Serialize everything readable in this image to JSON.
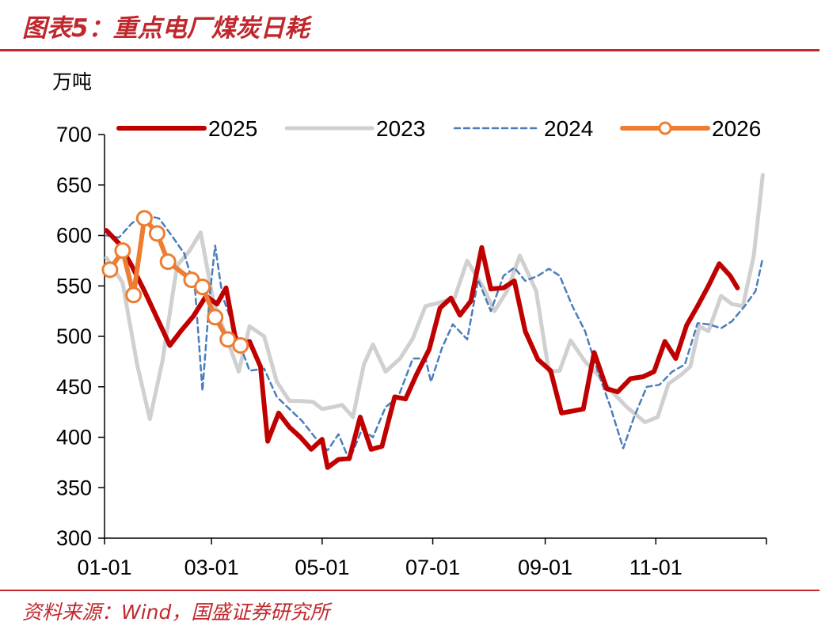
{
  "header": {
    "title": "图表5：重点电厂煤炭日耗"
  },
  "footer": {
    "source": "资料来源：Wind，国盛证券研究所"
  },
  "colors": {
    "accent": "#c0282d",
    "s2025": "#c00000",
    "s2023": "#d0d0d0",
    "s2024": "#4a7ebb",
    "s2026": "#ed7d31"
  },
  "chart_data": {
    "type": "line",
    "ylabel": "万吨",
    "ylim": [
      300,
      700
    ],
    "yticks": [
      300,
      350,
      400,
      450,
      500,
      550,
      600,
      650,
      700
    ],
    "xlim": [
      0,
      365
    ],
    "xticks": [
      {
        "day": 0,
        "label": "01-01"
      },
      {
        "day": 59,
        "label": "03-01"
      },
      {
        "day": 120,
        "label": "05-01"
      },
      {
        "day": 181,
        "label": "07-01"
      },
      {
        "day": 243,
        "label": "09-01"
      },
      {
        "day": 304,
        "label": "11-01"
      }
    ],
    "series": [
      {
        "name": "2023",
        "key": "s2023",
        "style": "gray",
        "points": [
          [
            1,
            578
          ],
          [
            10,
            553
          ],
          [
            18,
            472
          ],
          [
            25,
            418
          ],
          [
            32,
            476
          ],
          [
            40,
            570
          ],
          [
            47,
            585
          ],
          [
            53,
            603
          ],
          [
            60,
            535
          ],
          [
            67,
            500
          ],
          [
            74,
            465
          ],
          [
            80,
            510
          ],
          [
            88,
            500
          ],
          [
            95,
            455
          ],
          [
            102,
            436
          ],
          [
            108,
            436
          ],
          [
            115,
            435
          ],
          [
            120,
            428
          ],
          [
            126,
            430
          ],
          [
            131,
            432
          ],
          [
            137,
            420
          ],
          [
            143,
            472
          ],
          [
            148,
            492
          ],
          [
            155,
            465
          ],
          [
            163,
            478
          ],
          [
            170,
            498
          ],
          [
            177,
            530
          ],
          [
            184,
            533
          ],
          [
            193,
            538
          ],
          [
            200,
            575
          ],
          [
            209,
            548
          ],
          [
            215,
            525
          ],
          [
            222,
            545
          ],
          [
            229,
            580
          ],
          [
            238,
            545
          ],
          [
            245,
            465
          ],
          [
            251,
            466
          ],
          [
            257,
            496
          ],
          [
            265,
            475
          ],
          [
            273,
            460
          ],
          [
            281,
            443
          ],
          [
            288,
            430
          ],
          [
            298,
            415
          ],
          [
            305,
            420
          ],
          [
            311,
            453
          ],
          [
            318,
            462
          ],
          [
            323,
            470
          ],
          [
            328,
            510
          ],
          [
            333,
            505
          ],
          [
            340,
            540
          ],
          [
            346,
            532
          ],
          [
            352,
            530
          ],
          [
            358,
            580
          ],
          [
            363,
            660
          ]
        ]
      },
      {
        "name": "2024",
        "key": "s2024",
        "style": "dashed",
        "points": [
          [
            1,
            600
          ],
          [
            8,
            598
          ],
          [
            15,
            612
          ],
          [
            22,
            620
          ],
          [
            30,
            617
          ],
          [
            37,
            600
          ],
          [
            44,
            582
          ],
          [
            50,
            545
          ],
          [
            54,
            446
          ],
          [
            58,
            540
          ],
          [
            61,
            590
          ],
          [
            65,
            540
          ],
          [
            72,
            505
          ],
          [
            80,
            466
          ],
          [
            88,
            468
          ],
          [
            95,
            440
          ],
          [
            102,
            428
          ],
          [
            109,
            416
          ],
          [
            116,
            400
          ],
          [
            123,
            387
          ],
          [
            129,
            403
          ],
          [
            135,
            377
          ],
          [
            142,
            408
          ],
          [
            148,
            400
          ],
          [
            155,
            430
          ],
          [
            162,
            440
          ],
          [
            170,
            478
          ],
          [
            177,
            478
          ],
          [
            180,
            455
          ],
          [
            186,
            488
          ],
          [
            192,
            512
          ],
          [
            200,
            497
          ],
          [
            206,
            556
          ],
          [
            213,
            525
          ],
          [
            220,
            560
          ],
          [
            226,
            568
          ],
          [
            232,
            555
          ],
          [
            239,
            560
          ],
          [
            245,
            567
          ],
          [
            251,
            560
          ],
          [
            258,
            530
          ],
          [
            265,
            505
          ],
          [
            272,
            465
          ],
          [
            279,
            430
          ],
          [
            286,
            389
          ],
          [
            292,
            420
          ],
          [
            299,
            450
          ],
          [
            306,
            452
          ],
          [
            313,
            465
          ],
          [
            320,
            472
          ],
          [
            327,
            513
          ],
          [
            333,
            512
          ],
          [
            340,
            508
          ],
          [
            346,
            515
          ],
          [
            353,
            530
          ],
          [
            359,
            545
          ],
          [
            363,
            578
          ]
        ]
      },
      {
        "name": "2025",
        "key": "s2025",
        "style": "solid-red",
        "points": [
          [
            1,
            605
          ],
          [
            8,
            592
          ],
          [
            15,
            570
          ],
          [
            22,
            545
          ],
          [
            29,
            518
          ],
          [
            36,
            491
          ],
          [
            42,
            505
          ],
          [
            49,
            520
          ],
          [
            56,
            540
          ],
          [
            62,
            532
          ],
          [
            67,
            548
          ],
          [
            73,
            490
          ],
          [
            80,
            495
          ],
          [
            86,
            470
          ],
          [
            90,
            396
          ],
          [
            96,
            424
          ],
          [
            102,
            410
          ],
          [
            108,
            400
          ],
          [
            114,
            388
          ],
          [
            120,
            398
          ],
          [
            123,
            370
          ],
          [
            129,
            378
          ],
          [
            135,
            379
          ],
          [
            141,
            420
          ],
          [
            147,
            388
          ],
          [
            153,
            391
          ],
          [
            160,
            440
          ],
          [
            166,
            438
          ],
          [
            172,
            462
          ],
          [
            179,
            487
          ],
          [
            185,
            528
          ],
          [
            191,
            538
          ],
          [
            196,
            521
          ],
          [
            202,
            535
          ],
          [
            208,
            588
          ],
          [
            213,
            547
          ],
          [
            220,
            548
          ],
          [
            226,
            555
          ],
          [
            232,
            505
          ],
          [
            239,
            477
          ],
          [
            246,
            466
          ],
          [
            252,
            424
          ],
          [
            258,
            426
          ],
          [
            264,
            428
          ],
          [
            270,
            484
          ],
          [
            277,
            448
          ],
          [
            283,
            445
          ],
          [
            290,
            458
          ],
          [
            297,
            460
          ],
          [
            303,
            465
          ],
          [
            309,
            495
          ],
          [
            315,
            478
          ],
          [
            321,
            511
          ],
          [
            327,
            530
          ],
          [
            333,
            550
          ],
          [
            339,
            572
          ],
          [
            345,
            560
          ],
          [
            349,
            548
          ]
        ]
      },
      {
        "name": "2026",
        "key": "s2026",
        "style": "orange-marker",
        "points": [
          [
            3,
            566
          ],
          [
            10,
            585
          ],
          [
            16,
            541
          ],
          [
            22,
            617
          ],
          [
            29,
            602
          ],
          [
            35,
            574
          ],
          [
            48,
            556
          ],
          [
            54,
            549
          ],
          [
            61,
            519
          ],
          [
            68,
            497
          ],
          [
            75,
            491
          ]
        ]
      }
    ]
  }
}
